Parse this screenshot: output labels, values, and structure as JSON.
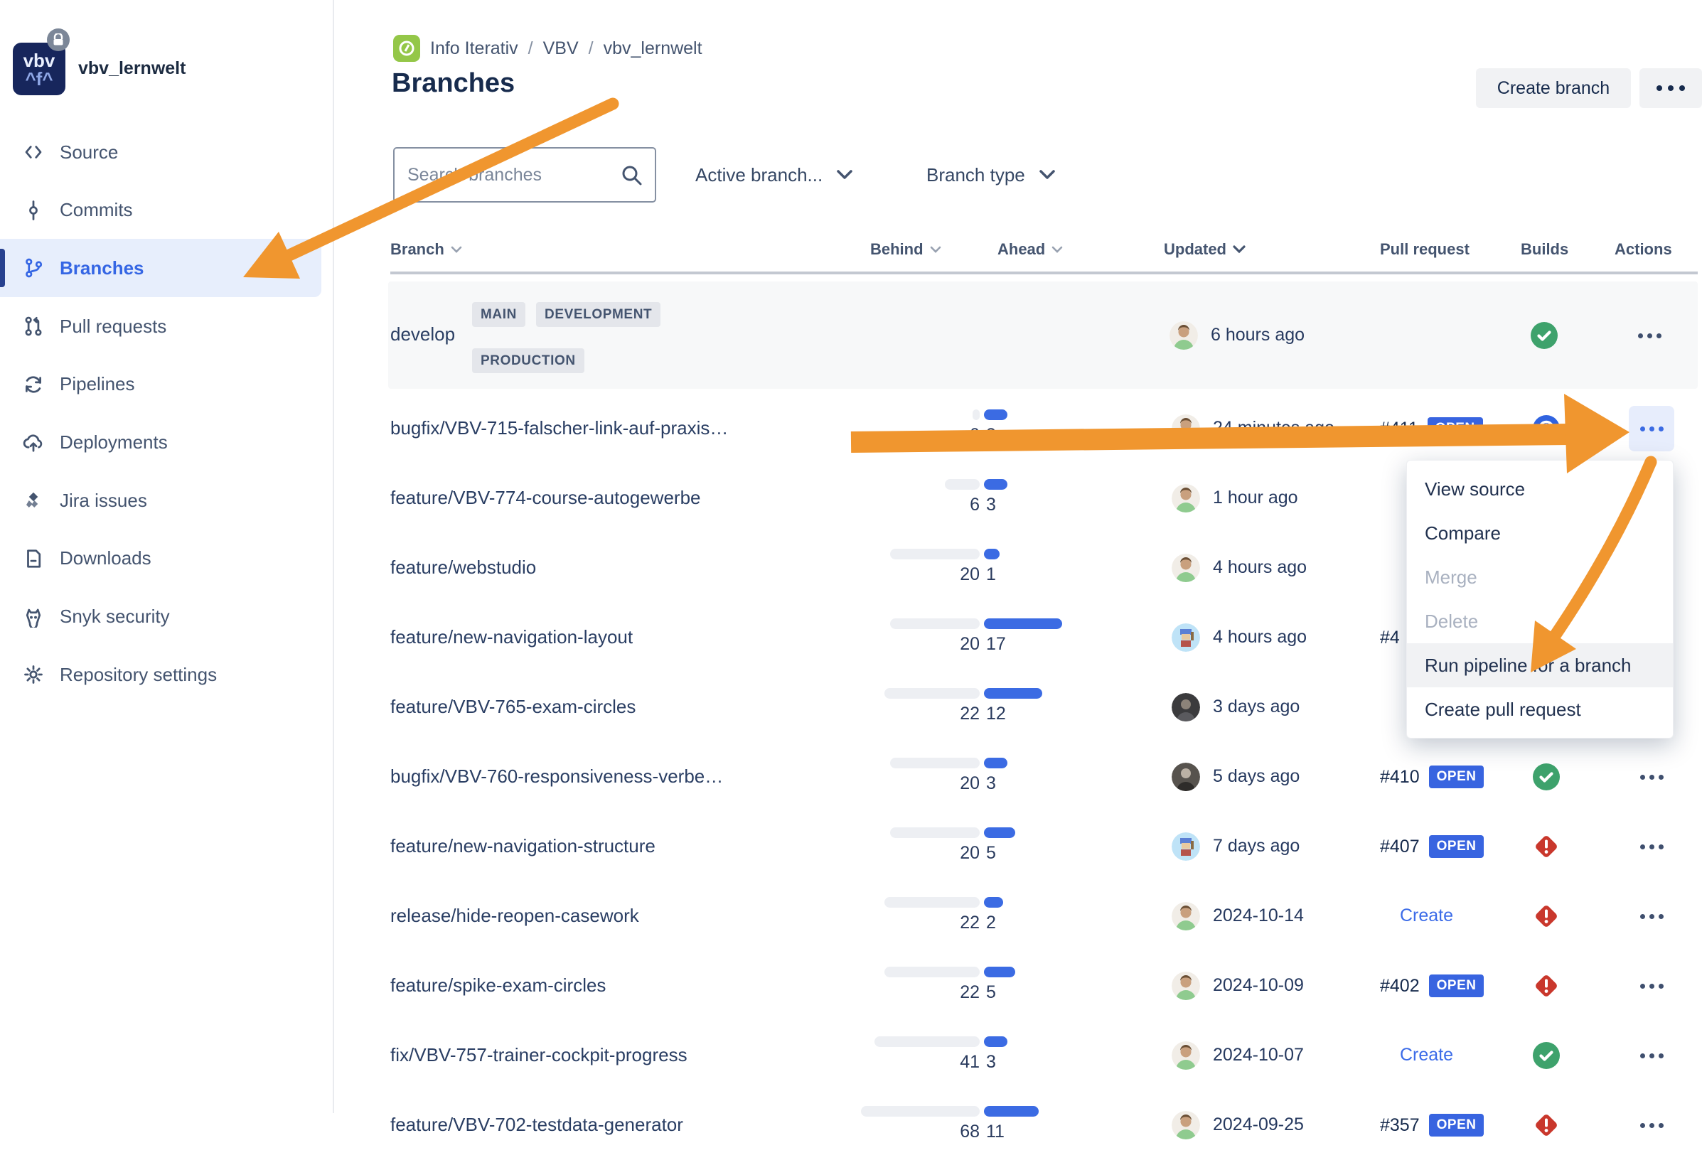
{
  "app": {
    "repo_name": "vbv_lernwelt",
    "logo_line1": "vbv",
    "logo_line2": "fx"
  },
  "sidebar": {
    "items": [
      {
        "id": "source",
        "label": "Source",
        "icon": "source-icon",
        "selected": false
      },
      {
        "id": "commits",
        "label": "Commits",
        "icon": "commits-icon",
        "selected": false
      },
      {
        "id": "branches",
        "label": "Branches",
        "icon": "branches-icon",
        "selected": true
      },
      {
        "id": "pull-requests",
        "label": "Pull requests",
        "icon": "pull-requests-icon",
        "selected": false
      },
      {
        "id": "pipelines",
        "label": "Pipelines",
        "icon": "pipelines-icon",
        "selected": false
      },
      {
        "id": "deployments",
        "label": "Deployments",
        "icon": "deployments-icon",
        "selected": false
      },
      {
        "id": "jira-issues",
        "label": "Jira issues",
        "icon": "jira-icon",
        "selected": false
      },
      {
        "id": "downloads",
        "label": "Downloads",
        "icon": "downloads-icon",
        "selected": false
      },
      {
        "id": "snyk-security",
        "label": "Snyk security",
        "icon": "snyk-icon",
        "selected": false
      },
      {
        "id": "repository-settings",
        "label": "Repository settings",
        "icon": "gear-icon",
        "selected": false
      }
    ]
  },
  "breadcrumb": {
    "items": [
      "Info Iterativ",
      "VBV",
      "vbv_lernwelt"
    ],
    "separator": "/"
  },
  "page": {
    "title": "Branches",
    "create_branch_label": "Create branch"
  },
  "filters": {
    "search_placeholder": "Search branches",
    "active_branches_label": "Active branch...",
    "branch_type_label": "Branch type"
  },
  "table": {
    "headers": {
      "branch": "Branch",
      "behind": "Behind",
      "ahead": "Ahead",
      "updated": "Updated",
      "pull_request": "Pull request",
      "builds": "Builds",
      "actions": "Actions"
    },
    "develop": {
      "name": "develop",
      "labels": [
        "MAIN",
        "DEVELOPMENT",
        "PRODUCTION"
      ],
      "updated": "6 hours ago",
      "build": "success",
      "avatar": "man"
    },
    "rows": [
      {
        "name": "bugfix/VBV-715-falscher-link-auf-praxis…",
        "behind": 0,
        "ahead": 3,
        "updated": "24 minutes ago",
        "avatar": "man",
        "pr_number": "#411",
        "pr_status": "OPEN",
        "build": "in_progress",
        "actions_active": true
      },
      {
        "name": "feature/VBV-774-course-autogewerbe",
        "behind": 6,
        "ahead": 3,
        "updated": "1 hour ago",
        "avatar": "man"
      },
      {
        "name": "feature/webstudio",
        "behind": 20,
        "ahead": 1,
        "updated": "4 hours ago",
        "avatar": "man"
      },
      {
        "name": "feature/new-navigation-layout",
        "behind": 20,
        "ahead": 17,
        "updated": "4 hours ago",
        "avatar": "pixel",
        "pr_number": "#4"
      },
      {
        "name": "feature/VBV-765-exam-circles",
        "behind": 22,
        "ahead": 12,
        "updated": "3 days ago",
        "avatar": "dark1"
      },
      {
        "name": "bugfix/VBV-760-responsiveness-verbe…",
        "behind": 20,
        "ahead": 3,
        "updated": "5 days ago",
        "avatar": "dark2",
        "pr_number": "#410",
        "pr_status": "OPEN",
        "build": "success"
      },
      {
        "name": "feature/new-navigation-structure",
        "behind": 20,
        "ahead": 5,
        "updated": "7 days ago",
        "avatar": "pixel",
        "pr_number": "#407",
        "pr_status": "OPEN",
        "build": "error"
      },
      {
        "name": "release/hide-reopen-casework",
        "behind": 22,
        "ahead": 2,
        "updated": "2024-10-14",
        "avatar": "man",
        "pr_create": "Create",
        "build": "error"
      },
      {
        "name": "feature/spike-exam-circles",
        "behind": 22,
        "ahead": 5,
        "updated": "2024-10-09",
        "avatar": "man",
        "pr_number": "#402",
        "pr_status": "OPEN",
        "build": "error"
      },
      {
        "name": "fix/VBV-757-trainer-cockpit-progress",
        "behind": 41,
        "ahead": 3,
        "updated": "2024-10-07",
        "avatar": "man",
        "pr_create": "Create",
        "build": "success"
      },
      {
        "name": "feature/VBV-702-testdata-generator",
        "behind": 68,
        "ahead": 11,
        "updated": "2024-09-25",
        "avatar": "man",
        "pr_number": "#357",
        "pr_status": "OPEN",
        "build": "error"
      }
    ]
  },
  "menu": {
    "items": [
      {
        "label": "View source",
        "enabled": true,
        "highlighted": false
      },
      {
        "label": "Compare",
        "enabled": true,
        "highlighted": false
      },
      {
        "label": "Merge",
        "enabled": false,
        "highlighted": false
      },
      {
        "label": "Delete",
        "enabled": false,
        "highlighted": false
      },
      {
        "label": "Run pipeline for a branch",
        "enabled": true,
        "highlighted": true
      },
      {
        "label": "Create pull request",
        "enabled": true,
        "highlighted": false
      }
    ]
  },
  "colors": {
    "accent_blue": "#3566E4",
    "open_badge": "#3864E0",
    "success_green": "#3EA26C",
    "error_red": "#C9372C",
    "in_progress_blue": "#3063E0",
    "annotation_orange": "#F0962F"
  }
}
